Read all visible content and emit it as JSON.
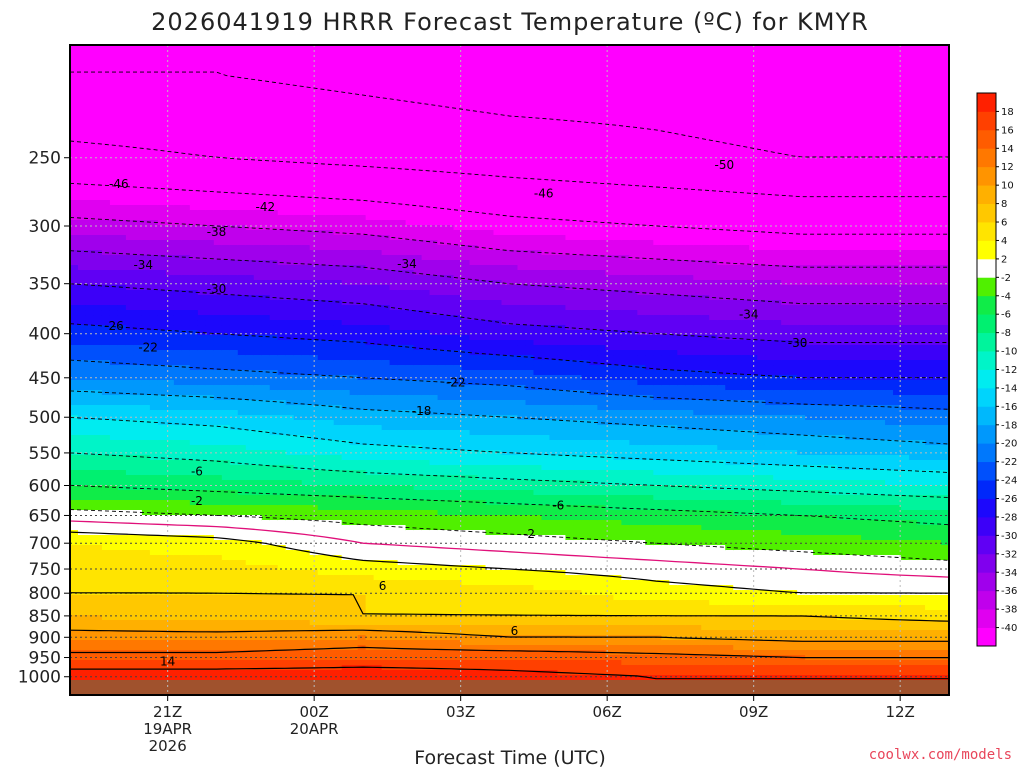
{
  "chart_data": {
    "type": "heatmap",
    "title": "2026041919 HRRR Forecast Temperature (ºC) for KMYR",
    "xlabel": "Forecast Time (UTC)",
    "ylabel": "",
    "credit": "coolwx.com/models",
    "x_ticks": [
      {
        "hour": 2,
        "label": "21Z",
        "sub": [
          "19APR",
          "2026"
        ]
      },
      {
        "hour": 5,
        "label": "00Z",
        "sub": [
          "20APR"
        ]
      },
      {
        "hour": 8,
        "label": "03Z",
        "sub": []
      },
      {
        "hour": 11,
        "label": "06Z",
        "sub": []
      },
      {
        "hour": 14,
        "label": "09Z",
        "sub": []
      },
      {
        "hour": 17,
        "label": "12Z",
        "sub": []
      }
    ],
    "x_range_hours": [
      0,
      18
    ],
    "y_unit": "hPa",
    "y_scale": "log",
    "y_range": [
      1050,
      185
    ],
    "y_ticks": [
      250,
      300,
      350,
      400,
      450,
      500,
      550,
      600,
      650,
      700,
      750,
      800,
      850,
      900,
      950,
      1000
    ],
    "grid": "dotted",
    "colorbar": {
      "colors": [
        "#ff00ff",
        "#e000f0",
        "#c000ec",
        "#a000ec",
        "#8000ee",
        "#6000f4",
        "#3c00f8",
        "#1c08fc",
        "#0028fa",
        "#0050fc",
        "#0078fc",
        "#0098fc",
        "#00b8fc",
        "#00d4fc",
        "#00ecf0",
        "#00f4c8",
        "#00f49c",
        "#00f070",
        "#10ec48",
        "#50f000",
        "#ffffff",
        "#ffff00",
        "#ffe400",
        "#ffc800",
        "#ffb000",
        "#ff9400",
        "#ff7800",
        "#ff5c00",
        "#ff4000",
        "#ff2000"
      ],
      "labels": [
        "-40",
        "-38",
        "-36",
        "-34",
        "-32",
        "-30",
        "-28",
        "-26",
        "-24",
        "-22",
        "-20",
        "-18",
        "-16",
        "-14",
        "-12",
        "-10",
        "-8",
        "-6",
        "-4",
        "-2",
        "2",
        "4",
        "6",
        "8",
        "10",
        "12",
        "14",
        "16",
        "18"
      ],
      "neutral_band": "white"
    },
    "temperature_field": {
      "hours": [
        0,
        3,
        6,
        9,
        12,
        15,
        18
      ],
      "levels": [
        {
          "p": 1000,
          "t": [
            20,
            20,
            20,
            19,
            18,
            18,
            18
          ]
        },
        {
          "p": 950,
          "t": [
            15,
            15,
            16,
            16,
            15,
            14,
            14
          ]
        },
        {
          "p": 900,
          "t": [
            11,
            11,
            12,
            10,
            10,
            9,
            9
          ]
        },
        {
          "p": 850,
          "t": [
            8,
            7,
            6,
            6,
            6,
            6,
            5
          ]
        },
        {
          "p": 800,
          "t": [
            6,
            6,
            6,
            5,
            3,
            2,
            2
          ]
        },
        {
          "p": 750,
          "t": [
            5,
            5,
            3,
            2,
            1,
            0,
            -1
          ]
        },
        {
          "p": 700,
          "t": [
            4,
            3,
            0,
            -1,
            -2,
            -3,
            -4
          ]
        },
        {
          "p": 650,
          "t": [
            -1,
            -2,
            -3,
            -4,
            -5,
            -6,
            -7
          ]
        },
        {
          "p": 600,
          "t": [
            -6,
            -7,
            -8,
            -9,
            -10,
            -11,
            -12
          ]
        },
        {
          "p": 550,
          "t": [
            -10,
            -11,
            -13,
            -14,
            -15,
            -16,
            -17
          ]
        },
        {
          "p": 500,
          "t": [
            -14,
            -15,
            -17,
            -18,
            -19,
            -20,
            -21
          ]
        },
        {
          "p": 450,
          "t": [
            -20,
            -21,
            -22,
            -23,
            -25,
            -26,
            -26
          ]
        },
        {
          "p": 400,
          "t": [
            -25,
            -26,
            -27,
            -29,
            -30,
            -31,
            -31
          ]
        },
        {
          "p": 350,
          "t": [
            -30,
            -31,
            -32,
            -34,
            -35,
            -36,
            -36
          ]
        },
        {
          "p": 300,
          "t": [
            -37,
            -38,
            -39,
            -41,
            -42,
            -43,
            -43
          ]
        },
        {
          "p": 250,
          "t": [
            -45,
            -46,
            -47,
            -48,
            -49,
            -50,
            -50
          ]
        },
        {
          "p": 200,
          "t": [
            -50,
            -50,
            -51,
            -52,
            -52,
            -53,
            -53
          ]
        }
      ]
    },
    "contour_labels": [
      {
        "text": "-46",
        "hour": 1.0,
        "p": 268
      },
      {
        "text": "-42",
        "hour": 4.0,
        "p": 285
      },
      {
        "text": "-38",
        "hour": 3.0,
        "p": 305
      },
      {
        "text": "-34",
        "hour": 1.5,
        "p": 333
      },
      {
        "text": "-34",
        "hour": 6.9,
        "p": 332
      },
      {
        "text": "-30",
        "hour": 3.0,
        "p": 355
      },
      {
        "text": "-26",
        "hour": 0.9,
        "p": 392
      },
      {
        "text": "-22",
        "hour": 1.6,
        "p": 415
      },
      {
        "text": "-22",
        "hour": 7.9,
        "p": 456
      },
      {
        "text": "-18",
        "hour": 7.2,
        "p": 492
      },
      {
        "text": "-6",
        "hour": 2.6,
        "p": 578
      },
      {
        "text": "-2",
        "hour": 2.6,
        "p": 625
      },
      {
        "text": "-6",
        "hour": 10.0,
        "p": 633
      },
      {
        "text": "-2",
        "hour": 9.4,
        "p": 683
      },
      {
        "text": "6",
        "hour": 6.4,
        "p": 785
      },
      {
        "text": "6",
        "hour": 9.1,
        "p": 885
      },
      {
        "text": "14",
        "hour": 2.0,
        "p": 960
      },
      {
        "text": "-50",
        "hour": 13.4,
        "p": 255
      },
      {
        "text": "-46",
        "hour": 9.7,
        "p": 275
      },
      {
        "text": "-34",
        "hour": 13.9,
        "p": 380
      },
      {
        "text": "-30",
        "hour": 14.9,
        "p": 410
      }
    ]
  }
}
